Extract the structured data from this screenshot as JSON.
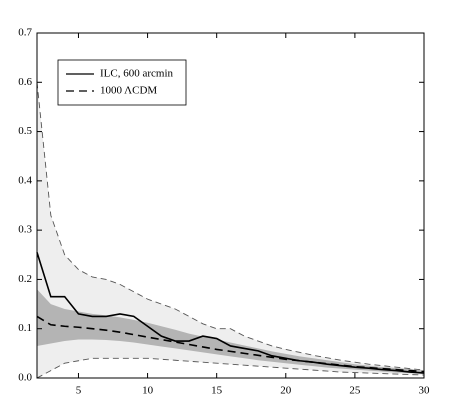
{
  "chart_data": {
    "type": "line",
    "x": [
      2,
      3,
      4,
      5,
      6,
      7,
      8,
      9,
      10,
      11,
      12,
      13,
      14,
      15,
      16,
      17,
      18,
      19,
      20,
      21,
      22,
      23,
      24,
      25,
      26,
      27,
      28,
      29,
      30
    ],
    "xlim": [
      2,
      30
    ],
    "xticks": [
      5,
      10,
      15,
      20,
      25,
      30
    ],
    "ylim": [
      0,
      0.7
    ],
    "yticks": [
      {
        "value": 0,
        "label": "0.0"
      },
      0.1,
      0.2,
      0.3,
      0.4,
      0.5,
      0.6,
      0.7
    ],
    "legend": "upper-left",
    "bands": [
      {
        "color": "#eeeeee",
        "edge": "dashed",
        "upper": [
          0.6,
          0.33,
          0.25,
          0.22,
          0.205,
          0.2,
          0.19,
          0.175,
          0.16,
          0.15,
          0.14,
          0.125,
          0.11,
          0.1,
          0.1,
          0.085,
          0.075,
          0.065,
          0.058,
          0.052,
          0.046,
          0.041,
          0.036,
          0.032,
          0.028,
          0.025,
          0.022,
          0.019,
          0.016
        ],
        "lower": [
          0.0,
          0.015,
          0.03,
          0.035,
          0.04,
          0.04,
          0.04,
          0.04,
          0.04,
          0.038,
          0.036,
          0.034,
          0.032,
          0.03,
          0.028,
          0.026,
          0.024,
          0.022,
          0.02,
          0.018,
          0.016,
          0.014,
          0.012,
          0.011,
          0.01,
          0.009,
          0.008,
          0.007,
          0.006
        ]
      },
      {
        "color": "#b4b4b4",
        "edge": "none",
        "upper": [
          0.18,
          0.15,
          0.14,
          0.135,
          0.13,
          0.127,
          0.123,
          0.118,
          0.112,
          0.105,
          0.098,
          0.09,
          0.084,
          0.078,
          0.072,
          0.066,
          0.06,
          0.054,
          0.049,
          0.044,
          0.04,
          0.036,
          0.032,
          0.028,
          0.025,
          0.022,
          0.02,
          0.018,
          0.015
        ],
        "lower": [
          0.065,
          0.07,
          0.075,
          0.078,
          0.078,
          0.077,
          0.075,
          0.072,
          0.068,
          0.064,
          0.06,
          0.056,
          0.052,
          0.048,
          0.044,
          0.04,
          0.036,
          0.033,
          0.03,
          0.027,
          0.024,
          0.021,
          0.019,
          0.017,
          0.015,
          0.013,
          0.011,
          0.01,
          0.009
        ]
      }
    ],
    "series": [
      {
        "name": "ILC, 600 arcmin",
        "color": "#000000",
        "style": "solid",
        "values": [
          0.255,
          0.165,
          0.165,
          0.13,
          0.125,
          0.125,
          0.13,
          0.125,
          0.105,
          0.085,
          0.075,
          0.075,
          0.085,
          0.08,
          0.065,
          0.06,
          0.055,
          0.045,
          0.04,
          0.035,
          0.032,
          0.028,
          0.025,
          0.022,
          0.02,
          0.017,
          0.015,
          0.012,
          0.01
        ]
      },
      {
        "name": "1000 ΛCDM",
        "color": "#000000",
        "style": "dashed",
        "values": [
          0.125,
          0.108,
          0.105,
          0.103,
          0.1,
          0.097,
          0.093,
          0.088,
          0.083,
          0.078,
          0.073,
          0.068,
          0.063,
          0.058,
          0.054,
          0.05,
          0.046,
          0.042,
          0.038,
          0.035,
          0.032,
          0.029,
          0.026,
          0.023,
          0.021,
          0.019,
          0.017,
          0.015,
          0.013
        ]
      }
    ]
  }
}
